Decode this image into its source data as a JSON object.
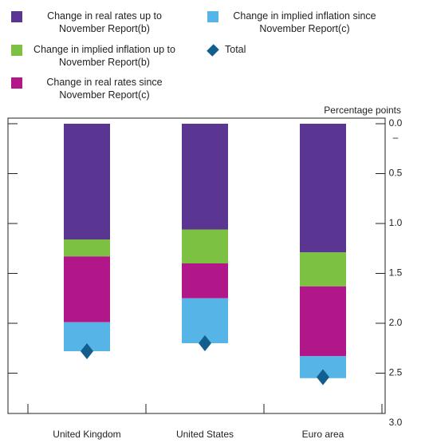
{
  "chart_data": {
    "type": "bar",
    "stacked": true,
    "y_axis_label": "Percentage points",
    "y_sign_label": "–",
    "categories": [
      "United Kingdom",
      "United States",
      "Euro area"
    ],
    "series": [
      {
        "name": "Change in real rates up to November Report(b)",
        "color": "#5a3592",
        "values": [
          -1.16,
          -1.06,
          -1.29
        ]
      },
      {
        "name": "Change in implied inflation up to November Report(b)",
        "color": "#7dc142",
        "values": [
          -0.17,
          -0.34,
          -0.34
        ]
      },
      {
        "name": "Change in real rates since November Report(c)",
        "color": "#b2178a",
        "values": [
          -0.66,
          -0.35,
          -0.7
        ]
      },
      {
        "name": "Change in implied inflation since November Report(c)",
        "color": "#56b4e6",
        "values": [
          -0.29,
          -0.45,
          -0.22
        ]
      },
      {
        "name": "Total",
        "color": "#115e8f",
        "marker": "diamond",
        "values": [
          -2.28,
          -2.2,
          -2.54
        ]
      }
    ],
    "ylim": [
      0,
      -3
    ],
    "yticks": [
      {
        "value": 0,
        "label": "0.0"
      },
      {
        "value": -0.5,
        "label": "0.5"
      },
      {
        "value": -1,
        "label": "1.0"
      },
      {
        "value": -1.5,
        "label": "1.5"
      },
      {
        "value": -2,
        "label": "2.0"
      },
      {
        "value": -2.5,
        "label": "2.5"
      },
      {
        "value": -3,
        "label": "3.0"
      }
    ]
  }
}
